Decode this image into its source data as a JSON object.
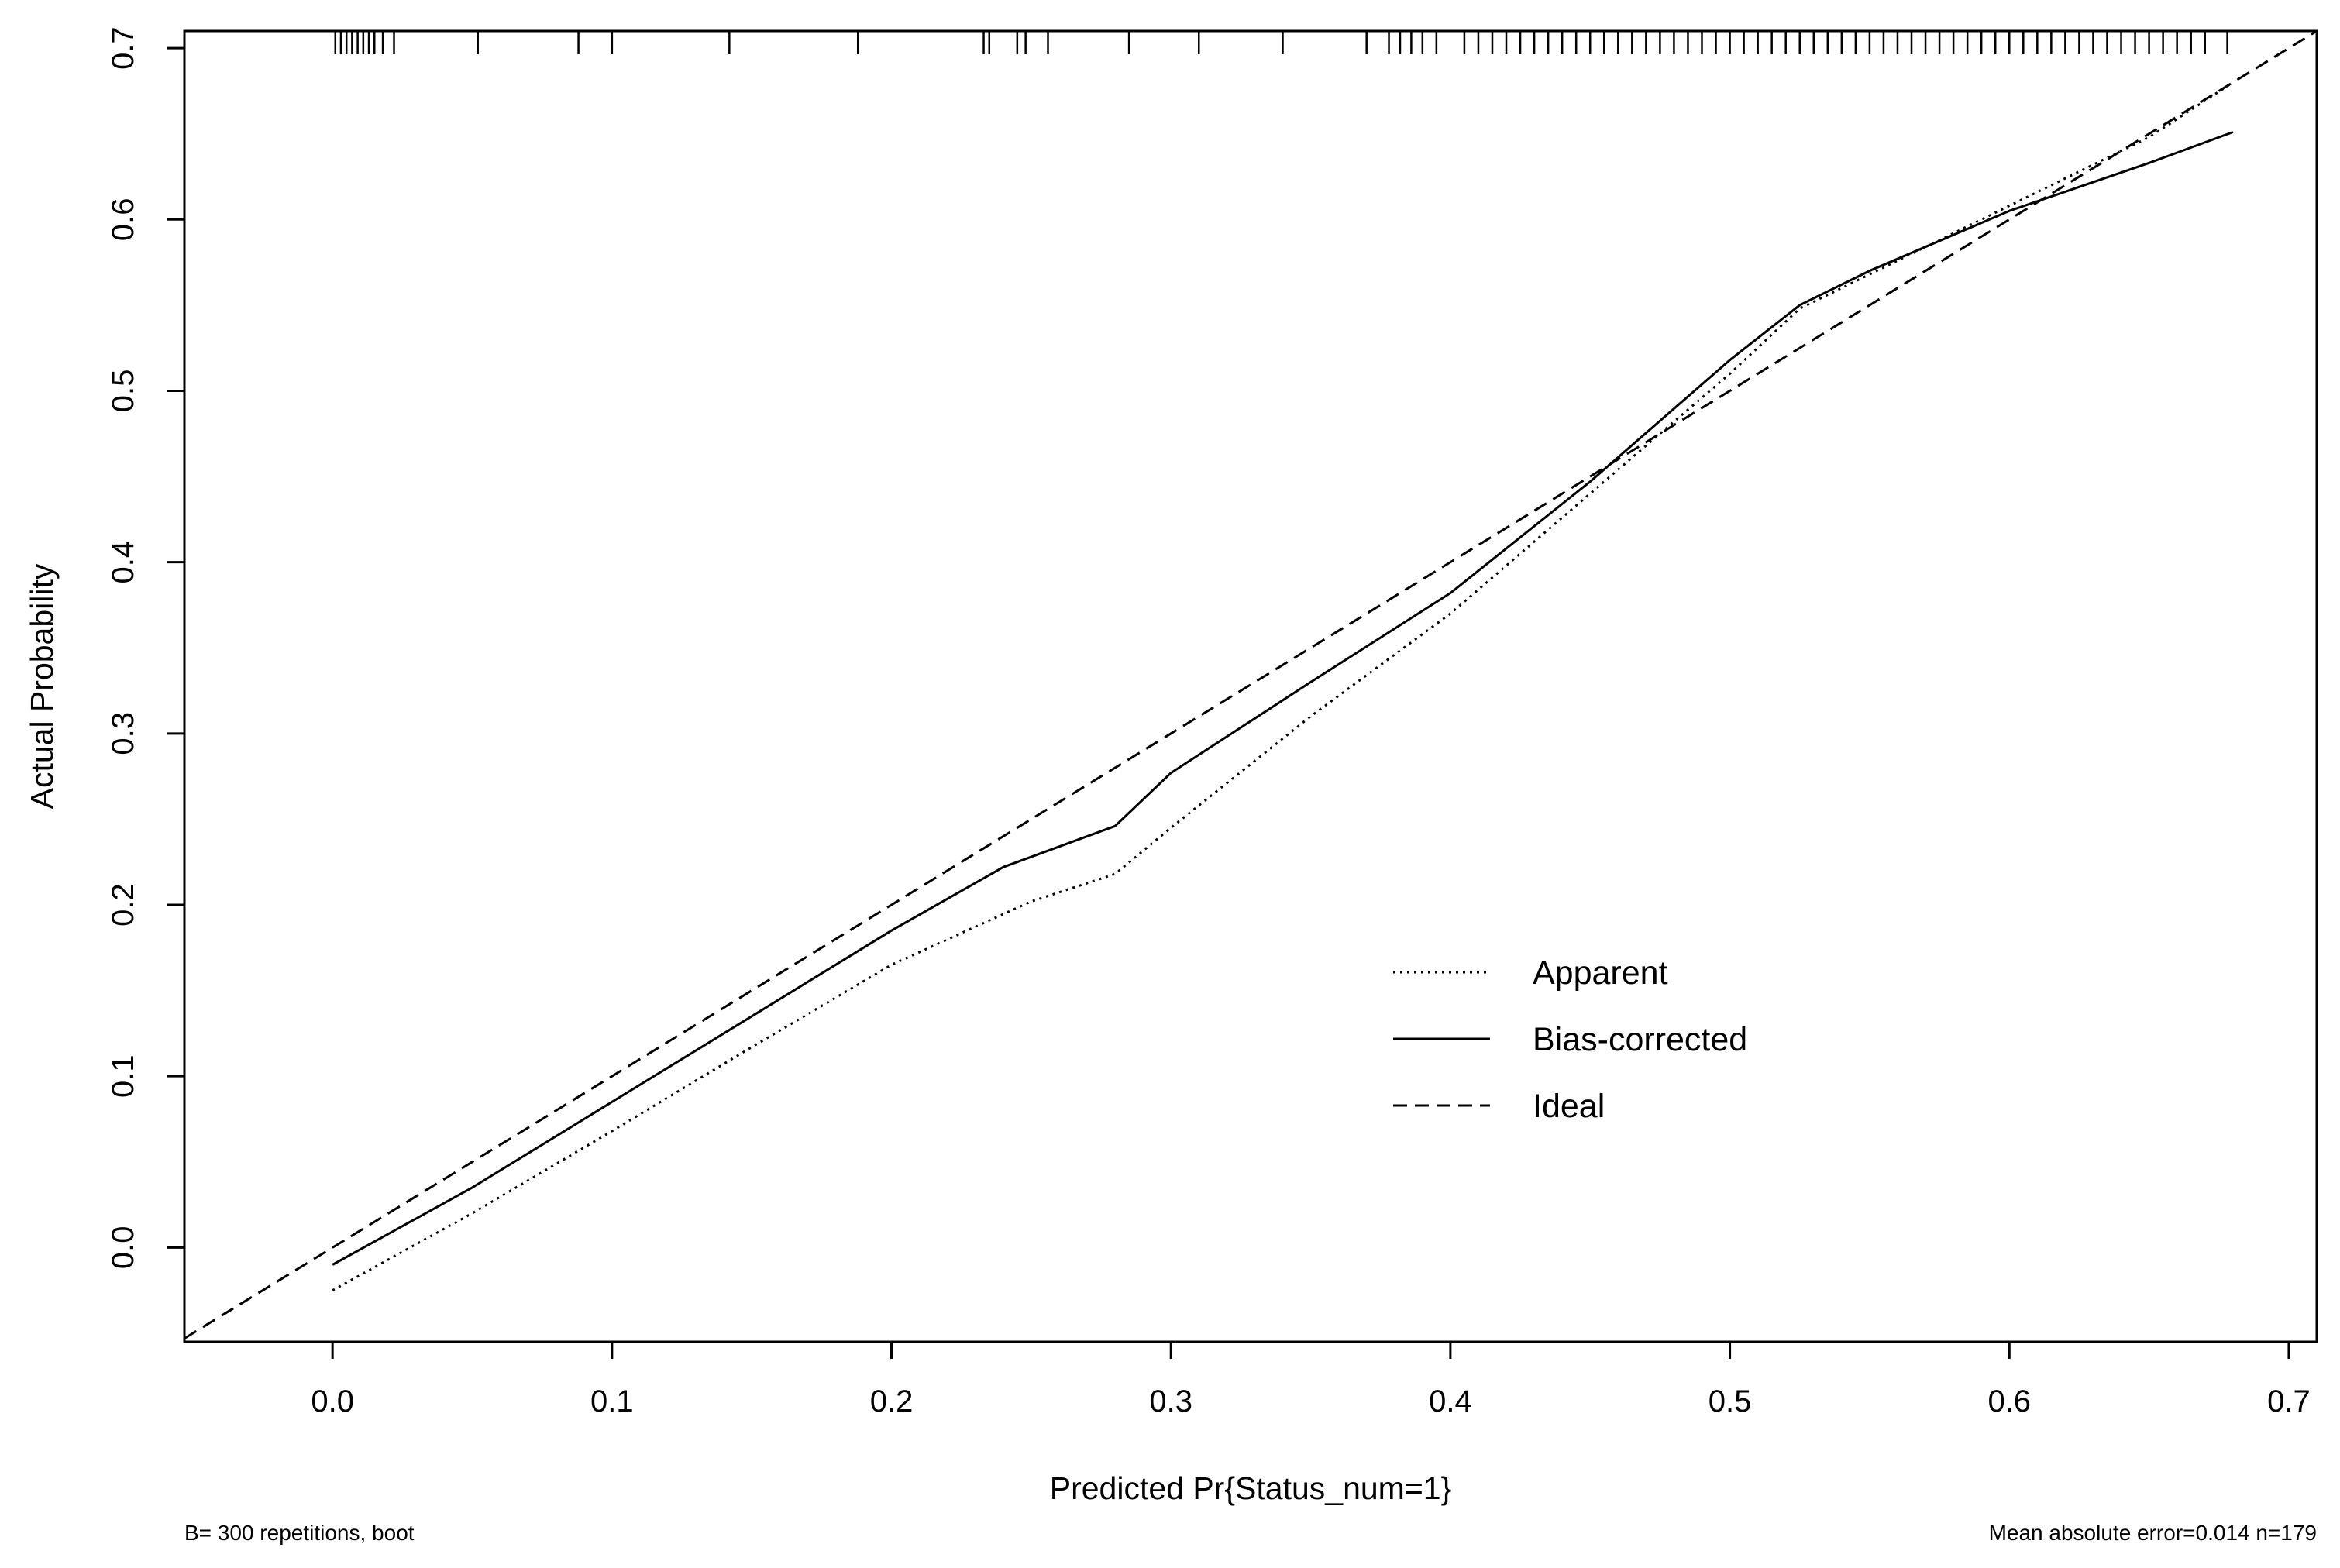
{
  "chart_data": {
    "type": "line",
    "title": "",
    "xlabel": "Predicted Pr{Status_num=1}",
    "ylabel": "Actual Probability",
    "xlim": [
      -0.053,
      0.71
    ],
    "ylim": [
      -0.055,
      0.71
    ],
    "x_ticks": [
      "0.0",
      "0.1",
      "0.2",
      "0.3",
      "0.4",
      "0.5",
      "0.6",
      "0.7"
    ],
    "y_ticks": [
      "0.0",
      "0.1",
      "0.2",
      "0.3",
      "0.4",
      "0.5",
      "0.6",
      "0.7"
    ],
    "grid": false,
    "legend_position": "lower-right",
    "series": [
      {
        "name": "Apparent",
        "style": "dotted",
        "x": [
          0.0,
          0.05,
          0.1,
          0.15,
          0.2,
          0.25,
          0.28,
          0.3,
          0.35,
          0.4,
          0.45,
          0.5,
          0.525,
          0.55,
          0.6,
          0.65,
          0.68
        ],
        "y": [
          -0.025,
          0.02,
          0.068,
          0.117,
          0.165,
          0.202,
          0.218,
          0.245,
          0.31,
          0.37,
          0.44,
          0.51,
          0.548,
          0.568,
          0.608,
          0.648,
          0.68
        ]
      },
      {
        "name": "Bias-corrected",
        "style": "solid",
        "x": [
          0.0,
          0.05,
          0.1,
          0.15,
          0.2,
          0.24,
          0.28,
          0.3,
          0.35,
          0.4,
          0.45,
          0.5,
          0.525,
          0.55,
          0.6,
          0.65,
          0.68
        ],
        "y": [
          -0.01,
          0.035,
          0.085,
          0.135,
          0.185,
          0.222,
          0.246,
          0.277,
          0.33,
          0.382,
          0.447,
          0.518,
          0.55,
          0.57,
          0.605,
          0.633,
          0.651
        ]
      },
      {
        "name": "Ideal",
        "style": "dashed",
        "x": [
          -0.053,
          0.71
        ],
        "y": [
          -0.053,
          0.71
        ]
      }
    ],
    "rug_x": [
      0.001,
      0.003,
      0.005,
      0.007,
      0.009,
      0.011,
      0.013,
      0.015,
      0.018,
      0.022,
      0.052,
      0.088,
      0.1,
      0.142,
      0.188,
      0.233,
      0.235,
      0.245,
      0.248,
      0.256,
      0.285,
      0.31,
      0.34,
      0.37,
      0.378,
      0.382,
      0.386,
      0.39,
      0.395,
      0.405,
      0.41,
      0.415,
      0.42,
      0.425,
      0.43,
      0.435,
      0.44,
      0.445,
      0.45,
      0.455,
      0.46,
      0.465,
      0.47,
      0.475,
      0.48,
      0.485,
      0.49,
      0.495,
      0.5,
      0.505,
      0.51,
      0.515,
      0.52,
      0.525,
      0.53,
      0.535,
      0.54,
      0.545,
      0.55,
      0.555,
      0.56,
      0.565,
      0.57,
      0.575,
      0.58,
      0.585,
      0.59,
      0.595,
      0.6,
      0.605,
      0.61,
      0.615,
      0.62,
      0.625,
      0.63,
      0.635,
      0.64,
      0.645,
      0.65,
      0.655,
      0.66,
      0.665,
      0.67,
      0.678
    ]
  },
  "legend": {
    "apparent": "Apparent",
    "bias_corrected": "Bias-corrected",
    "ideal": "Ideal"
  },
  "footer": {
    "left": "B= 300 repetitions, boot",
    "right": "Mean absolute error=0.014 n=179"
  }
}
